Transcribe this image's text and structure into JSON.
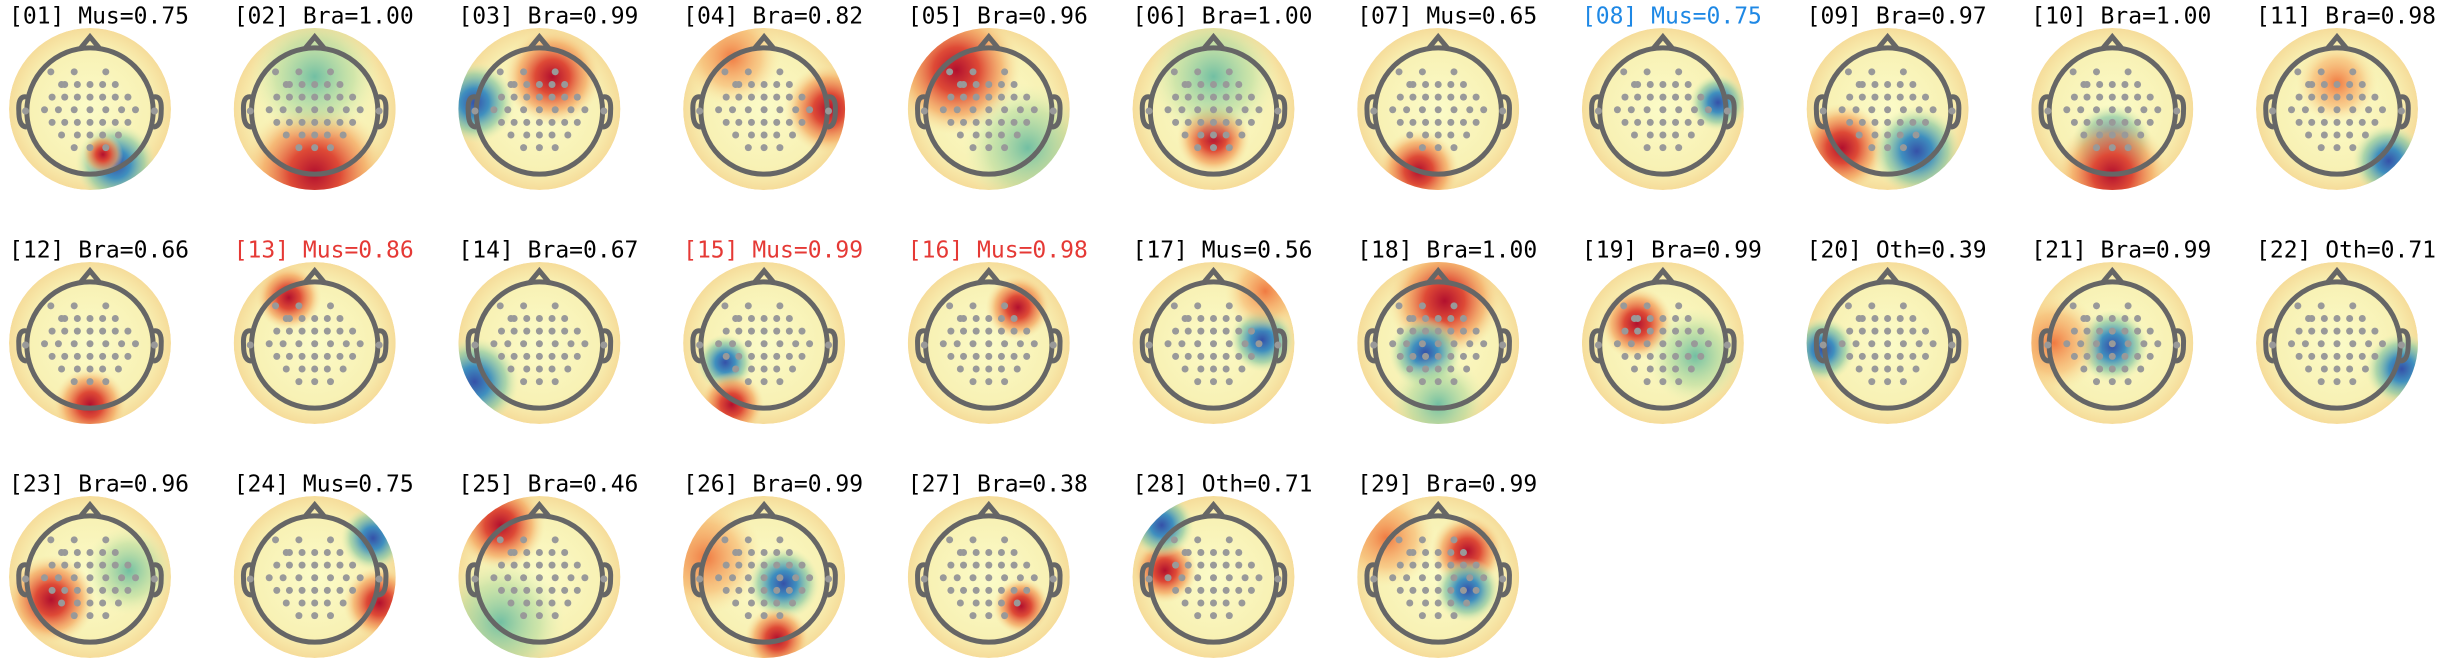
{
  "components": [
    {
      "label": "[01] Mus=0.75",
      "color": "#000000"
    },
    {
      "label": "[02] Bra=1.00",
      "color": "#000000"
    },
    {
      "label": "[03] Bra=0.99",
      "color": "#000000"
    },
    {
      "label": "[04] Bra=0.82",
      "color": "#000000"
    },
    {
      "label": "[05] Bra=0.96",
      "color": "#000000"
    },
    {
      "label": "[06] Bra=1.00",
      "color": "#000000"
    },
    {
      "label": "[07] Mus=0.65",
      "color": "#000000"
    },
    {
      "label": "[08] Mus=0.75",
      "color": "#1e88e5"
    },
    {
      "label": "[09] Bra=0.97",
      "color": "#000000"
    },
    {
      "label": "[10] Bra=1.00",
      "color": "#000000"
    },
    {
      "label": "[11] Bra=0.98",
      "color": "#000000"
    },
    {
      "label": "[12] Bra=0.66",
      "color": "#000000"
    },
    {
      "label": "[13] Mus=0.86",
      "color": "#e53935"
    },
    {
      "label": "[14] Bra=0.67",
      "color": "#000000"
    },
    {
      "label": "[15] Mus=0.99",
      "color": "#e53935"
    },
    {
      "label": "[16] Mus=0.98",
      "color": "#e53935"
    },
    {
      "label": "[17] Mus=0.56",
      "color": "#000000"
    },
    {
      "label": "[18] Bra=1.00",
      "color": "#000000"
    },
    {
      "label": "[19] Bra=0.99",
      "color": "#000000"
    },
    {
      "label": "[20] Oth=0.39",
      "color": "#000000"
    },
    {
      "label": "[21] Bra=0.99",
      "color": "#000000"
    },
    {
      "label": "[22] Oth=0.71",
      "color": "#000000"
    },
    {
      "label": "[23] Bra=0.96",
      "color": "#000000"
    },
    {
      "label": "[24] Mus=0.75",
      "color": "#000000"
    },
    {
      "label": "[25] Bra=0.46",
      "color": "#000000"
    },
    {
      "label": "[26] Bra=0.99",
      "color": "#000000"
    },
    {
      "label": "[27] Bra=0.38",
      "color": "#000000"
    },
    {
      "label": "[28] Oth=0.71",
      "color": "#000000"
    },
    {
      "label": "[29] Bra=0.99",
      "color": "#000000"
    }
  ]
}
